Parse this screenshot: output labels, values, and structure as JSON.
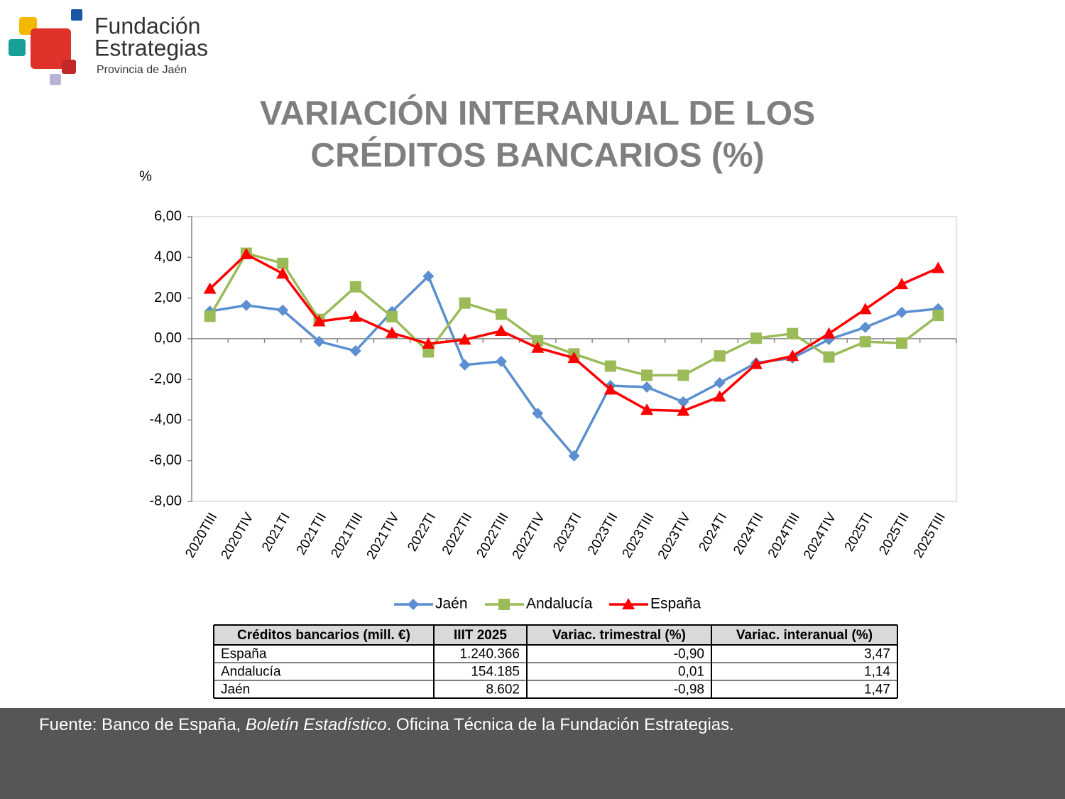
{
  "logo": {
    "line1": "Fundación",
    "line2": "Estrategias",
    "line3": "Provincia de Jaén"
  },
  "chart_data": {
    "type": "line",
    "title": [
      "VARIACIÓN INTERANUAL DE LOS",
      "CRÉDITOS BANCARIOS (%)"
    ],
    "y_label": "%",
    "categories": [
      "2020TIII",
      "2020TIV",
      "2021TI",
      "2021TII",
      "2021TIII",
      "2021TIV",
      "2022TI",
      "2022TII",
      "2022TIII",
      "2022TIV",
      "2023TI",
      "2023TII",
      "2023TIII",
      "2023TIV",
      "2024TI",
      "2024TII",
      "2024TIII",
      "2024TIV",
      "2025TI",
      "2025TII",
      "2025TIII"
    ],
    "series": [
      {
        "name": "Jaén",
        "color": "#5b8fd0",
        "marker": "diamond",
        "values": [
          1.35,
          1.64,
          1.4,
          -0.14,
          -0.6,
          1.33,
          3.07,
          -1.29,
          -1.12,
          -3.67,
          -5.76,
          -2.31,
          -2.38,
          -3.11,
          -2.17,
          -1.19,
          -0.95,
          -0.04,
          0.56,
          1.29,
          1.47
        ]
      },
      {
        "name": "Andalucía",
        "color": "#9bbb59",
        "marker": "square",
        "values": [
          1.1,
          4.2,
          3.7,
          0.95,
          2.55,
          1.08,
          -0.65,
          1.75,
          1.2,
          -0.1,
          -0.75,
          -1.35,
          -1.8,
          -1.8,
          -0.85,
          0.02,
          0.25,
          -0.9,
          -0.15,
          -0.22,
          1.14
        ]
      },
      {
        "name": "España",
        "color": "#ff0000",
        "marker": "triangle",
        "values": [
          2.45,
          4.15,
          3.2,
          0.85,
          1.08,
          0.28,
          -0.25,
          -0.05,
          0.38,
          -0.45,
          -0.95,
          -2.5,
          -3.5,
          -3.55,
          -2.85,
          -1.25,
          -0.85,
          0.25,
          1.45,
          2.68,
          3.47
        ]
      }
    ],
    "ylim": [
      -8,
      6
    ],
    "yticks": [
      {
        "value": -8,
        "label": "-8,00"
      },
      {
        "value": -6,
        "label": "-6,00"
      },
      {
        "value": -4,
        "label": "-4,00"
      },
      {
        "value": -2,
        "label": "-2,00"
      },
      {
        "value": 0,
        "label": "0,00"
      },
      {
        "value": 2,
        "label": "2,00"
      },
      {
        "value": 4,
        "label": "4,00"
      },
      {
        "value": 6,
        "label": "6,00"
      }
    ],
    "grid": false,
    "legend": "bottom"
  },
  "table": {
    "header": [
      "Créditos bancarios (mill. €)",
      "IIIT 2025",
      "Variac. trimestral (%)",
      "Variac. interanual (%)"
    ],
    "rows": [
      [
        "España",
        "1.240.366",
        "-0,90",
        "3,47"
      ],
      [
        "Andalucía",
        "154.185",
        "0,01",
        "1,14"
      ],
      [
        "Jaén",
        "8.602",
        "-0,98",
        "1,47"
      ]
    ]
  },
  "footer": [
    "Fuente: Banco de España, ",
    "Boletín Estadístico",
    ". Oficina Técnica de la Fundación Estrategias."
  ]
}
